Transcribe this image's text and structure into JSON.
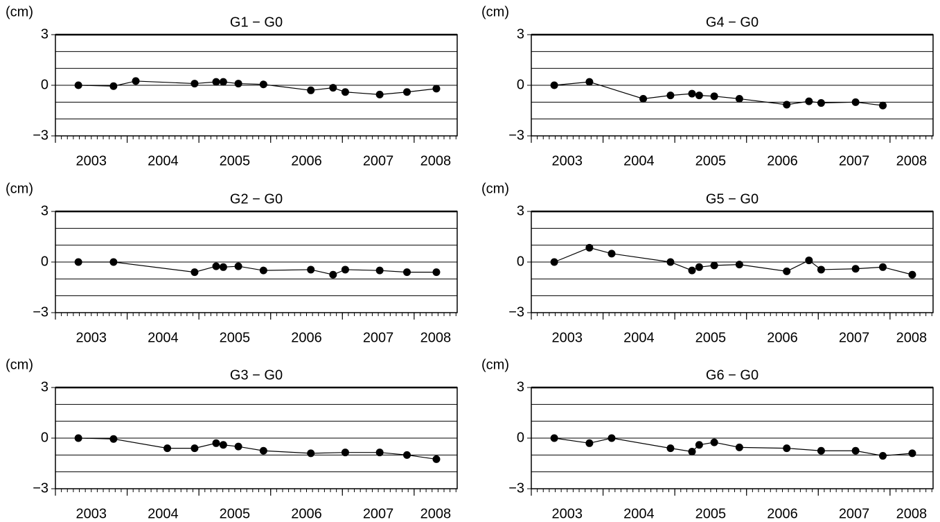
{
  "chart_data": [
    {
      "type": "line",
      "title": "G1 − G0",
      "ylabel": "(cm)",
      "color": "#000000",
      "x": [
        2003.32,
        2003.81,
        2004.12,
        2004.94,
        2005.24,
        2005.34,
        2005.55,
        2005.9,
        2006.56,
        2006.87,
        2007.04,
        2007.52,
        2007.9,
        2008.31
      ],
      "values": [
        0,
        -0.05,
        0.25,
        0.1,
        0.2,
        0.2,
        0.1,
        0.05,
        -0.3,
        -0.15,
        -0.4,
        -0.55,
        -0.4,
        -0.2
      ],
      "xlim": [
        2003,
        2008.6
      ],
      "xticks": [
        2003,
        2004,
        2005,
        2006,
        2007,
        2008
      ],
      "ylim": [
        -3,
        3
      ],
      "yticks": [
        {
          "value": -3,
          "label": "−3"
        },
        0,
        3
      ],
      "ygrid": [
        -2,
        -1,
        0,
        1,
        2
      ]
    },
    {
      "type": "line",
      "title": "G4 − G0",
      "ylabel": "(cm)",
      "color": "#000000",
      "x": [
        2003.32,
        2003.81,
        2004.56,
        2004.94,
        2005.24,
        2005.34,
        2005.55,
        2005.9,
        2006.56,
        2006.87,
        2007.04,
        2007.52,
        2007.9
      ],
      "values": [
        0,
        0.2,
        -0.8,
        -0.6,
        -0.5,
        -0.6,
        -0.65,
        -0.8,
        -1.15,
        -0.95,
        -1.05,
        -1.0,
        -1.2
      ],
      "xlim": [
        2003,
        2008.6
      ],
      "xticks": [
        2003,
        2004,
        2005,
        2006,
        2007,
        2008
      ],
      "ylim": [
        -3,
        3
      ],
      "yticks": [
        {
          "value": -3,
          "label": "−3"
        },
        0,
        3
      ],
      "ygrid": [
        -2,
        -1,
        0,
        1,
        2
      ]
    },
    {
      "type": "line",
      "title": "G2 − G0",
      "ylabel": "(cm)",
      "color": "#000000",
      "x": [
        2003.32,
        2003.81,
        2004.94,
        2005.24,
        2005.34,
        2005.55,
        2005.9,
        2006.56,
        2006.87,
        2007.04,
        2007.52,
        2007.9,
        2008.31
      ],
      "values": [
        0,
        0,
        -0.6,
        -0.25,
        -0.3,
        -0.25,
        -0.5,
        -0.45,
        -0.75,
        -0.45,
        -0.5,
        -0.6,
        -0.6
      ],
      "xlim": [
        2003,
        2008.6
      ],
      "xticks": [
        2003,
        2004,
        2005,
        2006,
        2007,
        2008
      ],
      "ylim": [
        -3,
        3
      ],
      "yticks": [
        {
          "value": -3,
          "label": "−3"
        },
        0,
        3
      ],
      "ygrid": [
        -2,
        -1,
        0,
        1,
        2
      ]
    },
    {
      "type": "line",
      "title": "G5 − G0",
      "ylabel": "(cm)",
      "color": "#000000",
      "x": [
        2003.32,
        2003.81,
        2004.12,
        2004.94,
        2005.24,
        2005.34,
        2005.55,
        2005.9,
        2006.56,
        2006.87,
        2007.04,
        2007.52,
        2007.9,
        2008.31
      ],
      "values": [
        0,
        0.85,
        0.5,
        0,
        -0.5,
        -0.3,
        -0.2,
        -0.15,
        -0.55,
        0.1,
        -0.45,
        -0.4,
        -0.3,
        -0.75
      ],
      "xlim": [
        2003,
        2008.6
      ],
      "xticks": [
        2003,
        2004,
        2005,
        2006,
        2007,
        2008
      ],
      "ylim": [
        -3,
        3
      ],
      "yticks": [
        {
          "value": -3,
          "label": "−3"
        },
        0,
        3
      ],
      "ygrid": [
        -2,
        -1,
        0,
        1,
        2
      ]
    },
    {
      "type": "line",
      "title": "G3 − G0",
      "ylabel": "(cm)",
      "color": "#000000",
      "x": [
        2003.32,
        2003.81,
        2004.56,
        2004.94,
        2005.24,
        2005.34,
        2005.55,
        2005.9,
        2006.56,
        2007.04,
        2007.52,
        2007.9,
        2008.31
      ],
      "values": [
        0,
        -0.05,
        -0.6,
        -0.6,
        -0.3,
        -0.4,
        -0.5,
        -0.75,
        -0.9,
        -0.85,
        -0.85,
        -1.0,
        -1.25
      ],
      "xlim": [
        2003,
        2008.6
      ],
      "xticks": [
        2003,
        2004,
        2005,
        2006,
        2007,
        2008
      ],
      "ylim": [
        -3,
        3
      ],
      "yticks": [
        {
          "value": -3,
          "label": "−3"
        },
        0,
        3
      ],
      "ygrid": [
        -2,
        -1,
        0,
        1,
        2
      ]
    },
    {
      "type": "line",
      "title": "G6 − G0",
      "ylabel": "(cm)",
      "color": "#000000",
      "x": [
        2003.32,
        2003.81,
        2004.12,
        2004.94,
        2005.24,
        2005.34,
        2005.55,
        2005.9,
        2006.56,
        2007.04,
        2007.52,
        2007.9,
        2008.31
      ],
      "values": [
        0,
        -0.3,
        0,
        -0.6,
        -0.8,
        -0.4,
        -0.25,
        -0.55,
        -0.6,
        -0.75,
        -0.75,
        -1.05,
        -0.9
      ],
      "xlim": [
        2003,
        2008.6
      ],
      "xticks": [
        2003,
        2004,
        2005,
        2006,
        2007,
        2008
      ],
      "ylim": [
        -3,
        3
      ],
      "yticks": [
        {
          "value": -3,
          "label": "−3"
        },
        0,
        3
      ],
      "ygrid": [
        -2,
        -1,
        0,
        1,
        2
      ]
    }
  ]
}
